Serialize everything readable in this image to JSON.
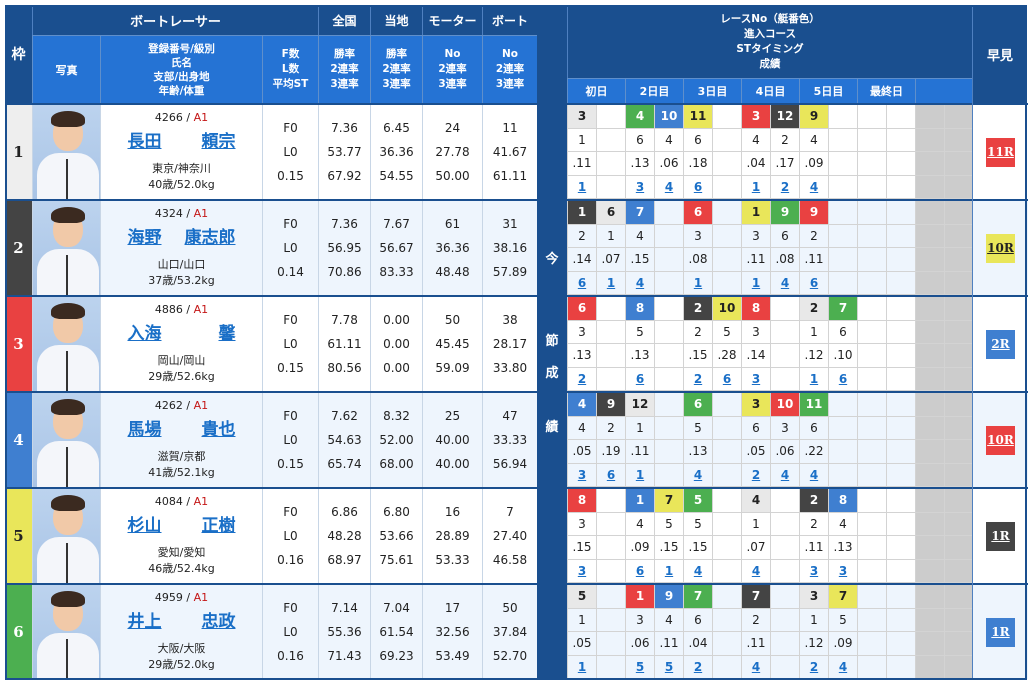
{
  "header": {
    "waku": "枠",
    "boatracer": "ボートレーサー",
    "zenkoku": "全国",
    "touchi": "当地",
    "motor": "モーター",
    "boat": "ボート",
    "photo": "写真",
    "info_lines": [
      "登録番号/級別",
      "氏名",
      "支部/出身地",
      "年齢/体重"
    ],
    "fl_lines": [
      "F数",
      "L数",
      "平均ST"
    ],
    "rate_lines": [
      "勝率",
      "2連率",
      "3連率"
    ],
    "no_lines": [
      "No",
      "2連率",
      "3連率"
    ],
    "race_title_lines": [
      "レースNo（艇番色）",
      "進入コース",
      "STタイミング",
      "成績"
    ],
    "days": [
      "初日",
      "2日目",
      "3日目",
      "4日目",
      "5日目",
      "最終日",
      ""
    ],
    "hayami": "早見",
    "strip": [
      "今",
      "節",
      "成",
      "績"
    ]
  },
  "colors": {
    "waku": [
      "#eeeeee",
      "#444444",
      "#e94141",
      "#3f7fd0",
      "#e9e65a",
      "#4caf50"
    ],
    "waku_text": [
      "#222222",
      "#ffffff",
      "#ffffff",
      "#ffffff",
      "#222222",
      "#ffffff"
    ],
    "boat": {
      "1": "#e8e8e8",
      "2": "#444444",
      "3": "#e94141",
      "4": "#3f7fd0",
      "5": "#e9e65a",
      "6": "#4caf50"
    },
    "boat_text": {
      "1": "#222222",
      "2": "#ffffff",
      "3": "#ffffff",
      "4": "#ffffff",
      "5": "#222222",
      "6": "#ffffff"
    }
  },
  "racers": [
    {
      "waku": "1",
      "reg": "4266",
      "class": "A1",
      "name_family": "長田",
      "name_given": "頼宗",
      "area": "東京/神奈川",
      "age_weight": "40歳/52.0kg",
      "f": "F0",
      "l": "L0",
      "st": "0.15",
      "zenkoku": [
        "7.36",
        "53.77",
        "67.92"
      ],
      "touchi": [
        "6.45",
        "36.36",
        "54.55"
      ],
      "motor": [
        "24",
        "27.78",
        "50.00"
      ],
      "boat": [
        "11",
        "41.67",
        "61.11"
      ],
      "races": [
        {
          "col": 0,
          "race": "3",
          "boat": "1",
          "course": "1",
          "st": ".11",
          "result": "1"
        },
        {
          "col": 2,
          "race": "4",
          "boat": "6",
          "course": "6",
          "st": ".13",
          "result": "3"
        },
        {
          "col": 3,
          "race": "10",
          "boat": "4",
          "course": "4",
          "st": ".06",
          "result": "4"
        },
        {
          "col": 4,
          "race": "11",
          "boat": "5",
          "course": "6",
          "st": ".18",
          "result": "6"
        },
        {
          "col": 6,
          "race": "3",
          "boat": "3",
          "course": "4",
          "st": ".04",
          "result": "1"
        },
        {
          "col": 7,
          "race": "12",
          "boat": "2",
          "course": "2",
          "st": ".17",
          "result": "2"
        },
        {
          "col": 8,
          "race": "9",
          "boat": "5",
          "course": "4",
          "st": ".09",
          "result": "4"
        }
      ],
      "hayami": "11R",
      "hayami_color": "#e94141",
      "hayami_text": "#ffffff"
    },
    {
      "waku": "2",
      "reg": "4324",
      "class": "A1",
      "name_family": "海野",
      "name_given": "康志郎",
      "area": "山口/山口",
      "age_weight": "37歳/53.2kg",
      "f": "F0",
      "l": "L0",
      "st": "0.14",
      "zenkoku": [
        "7.36",
        "56.95",
        "70.86"
      ],
      "touchi": [
        "7.67",
        "56.67",
        "83.33"
      ],
      "motor": [
        "61",
        "36.36",
        "48.48"
      ],
      "boat": [
        "31",
        "38.16",
        "57.89"
      ],
      "races": [
        {
          "col": 0,
          "race": "1",
          "boat": "2",
          "course": "2",
          "st": ".14",
          "result": "6"
        },
        {
          "col": 1,
          "race": "6",
          "boat": "1",
          "course": "1",
          "st": ".07",
          "result": "1"
        },
        {
          "col": 2,
          "race": "7",
          "boat": "4",
          "course": "4",
          "st": ".15",
          "result": "4"
        },
        {
          "col": 4,
          "race": "6",
          "boat": "3",
          "course": "3",
          "st": ".08",
          "result": "1"
        },
        {
          "col": 6,
          "race": "1",
          "boat": "5",
          "course": "3",
          "st": ".11",
          "result": "1"
        },
        {
          "col": 7,
          "race": "9",
          "boat": "6",
          "course": "6",
          "st": ".08",
          "result": "4"
        },
        {
          "col": 8,
          "race": "9",
          "boat": "3",
          "course": "2",
          "st": ".11",
          "result": "6"
        }
      ],
      "hayami": "10R",
      "hayami_color": "#e9e65a",
      "hayami_text": "#222222"
    },
    {
      "waku": "3",
      "reg": "4886",
      "class": "A1",
      "name_family": "入海",
      "name_given": "馨",
      "area": "岡山/岡山",
      "age_weight": "29歳/52.6kg",
      "f": "F0",
      "l": "L0",
      "st": "0.15",
      "zenkoku": [
        "7.78",
        "61.11",
        "80.56"
      ],
      "touchi": [
        "0.00",
        "0.00",
        "0.00"
      ],
      "motor": [
        "50",
        "45.45",
        "59.09"
      ],
      "boat": [
        "38",
        "28.17",
        "33.80"
      ],
      "races": [
        {
          "col": 0,
          "race": "6",
          "boat": "3",
          "course": "3",
          "st": ".13",
          "result": "2"
        },
        {
          "col": 2,
          "race": "8",
          "boat": "4",
          "course": "5",
          "st": ".13",
          "result": "6"
        },
        {
          "col": 4,
          "race": "2",
          "boat": "2",
          "course": "2",
          "st": ".15",
          "result": "2"
        },
        {
          "col": 5,
          "race": "10",
          "boat": "5",
          "course": "5",
          "st": ".28",
          "result": "6"
        },
        {
          "col": 6,
          "race": "8",
          "boat": "3",
          "course": "3",
          "st": ".14",
          "result": "3"
        },
        {
          "col": 8,
          "race": "2",
          "boat": "1",
          "course": "1",
          "st": ".12",
          "result": "1"
        },
        {
          "col": 9,
          "race": "7",
          "boat": "6",
          "course": "6",
          "st": ".10",
          "result": "6"
        }
      ],
      "hayami": "2R",
      "hayami_color": "#3f7fd0",
      "hayami_text": "#ffffff"
    },
    {
      "waku": "4",
      "reg": "4262",
      "class": "A1",
      "name_family": "馬場",
      "name_given": "貴也",
      "area": "滋賀/京都",
      "age_weight": "41歳/52.1kg",
      "f": "F0",
      "l": "L0",
      "st": "0.15",
      "zenkoku": [
        "7.62",
        "54.63",
        "65.74"
      ],
      "touchi": [
        "8.32",
        "52.00",
        "68.00"
      ],
      "motor": [
        "25",
        "40.00",
        "40.00"
      ],
      "boat": [
        "47",
        "33.33",
        "56.94"
      ],
      "races": [
        {
          "col": 0,
          "race": "4",
          "boat": "4",
          "course": "4",
          "st": ".05",
          "result": "3"
        },
        {
          "col": 1,
          "race": "9",
          "boat": "2",
          "course": "2",
          "st": ".19",
          "result": "6"
        },
        {
          "col": 2,
          "race": "12",
          "boat": "1",
          "course": "1",
          "st": ".11",
          "result": "1"
        },
        {
          "col": 4,
          "race": "6",
          "boat": "6",
          "course": "5",
          "st": ".13",
          "result": "4"
        },
        {
          "col": 6,
          "race": "3",
          "boat": "5",
          "course": "6",
          "st": ".05",
          "result": "2"
        },
        {
          "col": 7,
          "race": "10",
          "boat": "3",
          "course": "3",
          "st": ".06",
          "result": "4"
        },
        {
          "col": 8,
          "race": "11",
          "boat": "6",
          "course": "6",
          "st": ".22",
          "result": "4"
        }
      ],
      "hayami": "10R",
      "hayami_color": "#e94141",
      "hayami_text": "#ffffff"
    },
    {
      "waku": "5",
      "reg": "4084",
      "class": "A1",
      "name_family": "杉山",
      "name_given": "正樹",
      "area": "愛知/愛知",
      "age_weight": "46歳/52.4kg",
      "f": "F0",
      "l": "L0",
      "st": "0.16",
      "zenkoku": [
        "6.86",
        "48.28",
        "68.97"
      ],
      "touchi": [
        "6.80",
        "53.66",
        "75.61"
      ],
      "motor": [
        "16",
        "28.89",
        "53.33"
      ],
      "boat": [
        "7",
        "27.40",
        "46.58"
      ],
      "races": [
        {
          "col": 0,
          "race": "8",
          "boat": "3",
          "course": "3",
          "st": ".15",
          "result": "3"
        },
        {
          "col": 2,
          "race": "1",
          "boat": "4",
          "course": "4",
          "st": ".09",
          "result": "6"
        },
        {
          "col": 3,
          "race": "7",
          "boat": "5",
          "course": "5",
          "st": ".15",
          "result": "1"
        },
        {
          "col": 4,
          "race": "5",
          "boat": "6",
          "course": "5",
          "st": ".15",
          "result": "4"
        },
        {
          "col": 6,
          "race": "4",
          "boat": "1",
          "course": "1",
          "st": ".07",
          "result": "4"
        },
        {
          "col": 8,
          "race": "2",
          "boat": "2",
          "course": "2",
          "st": ".11",
          "result": "3"
        },
        {
          "col": 9,
          "race": "8",
          "boat": "4",
          "course": "4",
          "st": ".13",
          "result": "3"
        }
      ],
      "hayami": "1R",
      "hayami_color": "#444444",
      "hayami_text": "#ffffff"
    },
    {
      "waku": "6",
      "reg": "4959",
      "class": "A1",
      "name_family": "井上",
      "name_given": "忠政",
      "area": "大阪/大阪",
      "age_weight": "29歳/52.0kg",
      "f": "F0",
      "l": "L0",
      "st": "0.16",
      "zenkoku": [
        "7.14",
        "55.36",
        "71.43"
      ],
      "touchi": [
        "7.04",
        "61.54",
        "69.23"
      ],
      "motor": [
        "17",
        "32.56",
        "53.49"
      ],
      "boat": [
        "50",
        "37.84",
        "52.70"
      ],
      "races": [
        {
          "col": 0,
          "race": "5",
          "boat": "1",
          "course": "1",
          "st": ".05",
          "result": "1"
        },
        {
          "col": 2,
          "race": "1",
          "boat": "3",
          "course": "3",
          "st": ".06",
          "result": "5"
        },
        {
          "col": 3,
          "race": "9",
          "boat": "4",
          "course": "4",
          "st": ".11",
          "result": "5"
        },
        {
          "col": 4,
          "race": "7",
          "boat": "6",
          "course": "6",
          "st": ".04",
          "result": "2"
        },
        {
          "col": 6,
          "race": "7",
          "boat": "2",
          "course": "2",
          "st": ".11",
          "result": "4"
        },
        {
          "col": 8,
          "race": "3",
          "boat": "1",
          "course": "1",
          "st": ".12",
          "result": "2"
        },
        {
          "col": 9,
          "race": "7",
          "boat": "5",
          "course": "5",
          "st": ".09",
          "result": "4"
        }
      ],
      "hayami": "1R",
      "hayami_color": "#3f7fd0",
      "hayami_text": "#ffffff"
    }
  ]
}
